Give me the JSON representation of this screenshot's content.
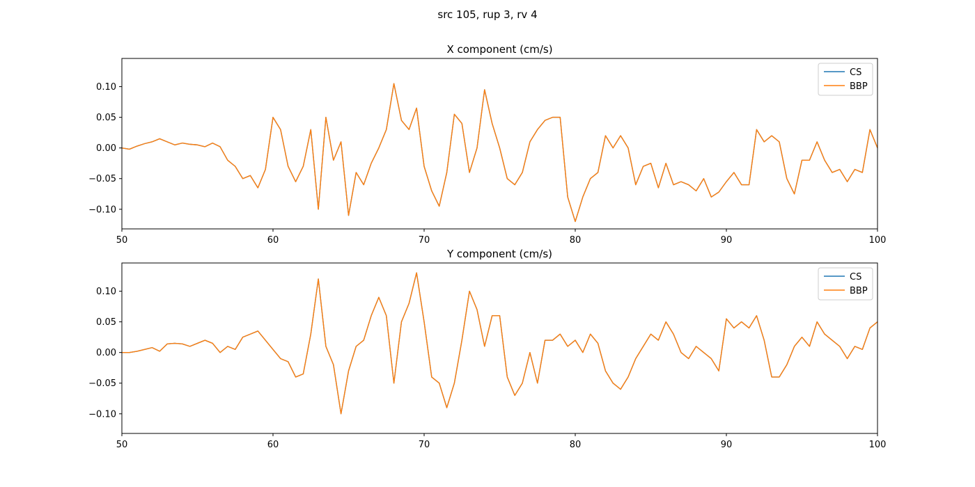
{
  "figure": {
    "suptitle": "src 105, rup 3, rv 4"
  },
  "colors": {
    "cs": "#1f77b4",
    "bbp": "#ff7f0e"
  },
  "chart_data": [
    {
      "type": "line",
      "title": "X component (cm/s)",
      "xlim": [
        50,
        100
      ],
      "ylim": [
        -0.132,
        0.146
      ],
      "xticks": [
        50,
        60,
        70,
        80,
        90,
        100
      ],
      "xtick_labels": [
        "50",
        "60",
        "70",
        "80",
        "90",
        "100"
      ],
      "yticks": [
        -0.1,
        -0.05,
        0.0,
        0.05,
        0.1
      ],
      "ytick_labels": [
        "−0.10",
        "−0.05",
        "0.00",
        "0.05",
        "0.10"
      ],
      "legend": {
        "placement": "upper-right",
        "entries": [
          "CS",
          "BBP"
        ]
      },
      "series": [
        {
          "name": "CS",
          "color": "#1f77b4"
        },
        {
          "name": "BBP",
          "color": "#ff7f0e"
        }
      ],
      "x": [
        50,
        50.5,
        51,
        51.5,
        52,
        52.5,
        53,
        53.5,
        54,
        54.5,
        55,
        55.5,
        56,
        56.5,
        57,
        57.5,
        58,
        58.5,
        59,
        59.5,
        60,
        60.5,
        61,
        61.5,
        62,
        62.5,
        63,
        63.5,
        64,
        64.5,
        65,
        65.5,
        66,
        66.5,
        67,
        67.5,
        68,
        68.5,
        69,
        69.5,
        70,
        70.5,
        71,
        71.5,
        72,
        72.5,
        73,
        73.5,
        74,
        74.5,
        75,
        75.5,
        76,
        76.5,
        77,
        77.5,
        78,
        78.5,
        79,
        79.5,
        80,
        80.5,
        81,
        81.5,
        82,
        82.5,
        83,
        83.5,
        84,
        84.5,
        85,
        85.5,
        86,
        86.5,
        87,
        87.5,
        88,
        88.5,
        89,
        89.5,
        90,
        90.5,
        91,
        91.5,
        92,
        92.5,
        93,
        93.5,
        94,
        94.5,
        95,
        95.5,
        96,
        96.5,
        97,
        97.5,
        98,
        98.5,
        99,
        99.5,
        100
      ],
      "y": [
        0.0,
        -0.002,
        0.003,
        0.007,
        0.01,
        0.015,
        0.01,
        0.005,
        0.008,
        0.006,
        0.005,
        0.002,
        0.008,
        0.002,
        -0.02,
        -0.03,
        -0.05,
        -0.045,
        -0.065,
        -0.035,
        0.05,
        0.03,
        -0.03,
        -0.055,
        -0.03,
        0.03,
        -0.1,
        0.05,
        -0.02,
        0.01,
        -0.11,
        -0.04,
        -0.06,
        -0.025,
        0.0,
        0.03,
        0.105,
        0.045,
        0.03,
        0.065,
        -0.03,
        -0.07,
        -0.095,
        -0.04,
        0.055,
        0.04,
        -0.04,
        0.0,
        0.095,
        0.04,
        0.0,
        -0.05,
        -0.06,
        -0.04,
        0.01,
        0.03,
        0.045,
        0.05,
        0.05,
        -0.08,
        -0.12,
        -0.08,
        -0.05,
        -0.04,
        0.02,
        0.0,
        0.02,
        0.0,
        -0.06,
        -0.03,
        -0.025,
        -0.065,
        -0.025,
        -0.06,
        -0.055,
        -0.06,
        -0.07,
        -0.05,
        -0.08,
        -0.072,
        -0.055,
        -0.04,
        -0.06,
        -0.06,
        0.03,
        0.01,
        0.02,
        0.01,
        -0.05,
        -0.075,
        -0.02,
        -0.02,
        0.01,
        -0.02,
        -0.04,
        -0.035,
        -0.055,
        -0.035,
        -0.04,
        0.03,
        0.0
      ],
      "annotation": "CS and BBP traces overlap"
    },
    {
      "type": "line",
      "title": "Y component (cm/s)",
      "xlim": [
        50,
        100
      ],
      "ylim": [
        -0.132,
        0.146
      ],
      "xticks": [
        50,
        60,
        70,
        80,
        90,
        100
      ],
      "xtick_labels": [
        "50",
        "60",
        "70",
        "80",
        "90",
        "100"
      ],
      "yticks": [
        -0.1,
        -0.05,
        0.0,
        0.05,
        0.1
      ],
      "ytick_labels": [
        "−0.10",
        "−0.05",
        "0.00",
        "0.05",
        "0.10"
      ],
      "legend": {
        "placement": "upper-right",
        "entries": [
          "CS",
          "BBP"
        ]
      },
      "series": [
        {
          "name": "CS",
          "color": "#1f77b4"
        },
        {
          "name": "BBP",
          "color": "#ff7f0e"
        }
      ],
      "x": [
        50,
        50.5,
        51,
        51.5,
        52,
        52.5,
        53,
        53.5,
        54,
        54.5,
        55,
        55.5,
        56,
        56.5,
        57,
        57.5,
        58,
        58.5,
        59,
        59.5,
        60,
        60.5,
        61,
        61.5,
        62,
        62.5,
        63,
        63.5,
        64,
        64.5,
        65,
        65.5,
        66,
        66.5,
        67,
        67.5,
        68,
        68.5,
        69,
        69.5,
        70,
        70.5,
        71,
        71.5,
        72,
        72.5,
        73,
        73.5,
        74,
        74.5,
        75,
        75.5,
        76,
        76.5,
        77,
        77.5,
        78,
        78.5,
        79,
        79.5,
        80,
        80.5,
        81,
        81.5,
        82,
        82.5,
        83,
        83.5,
        84,
        84.5,
        85,
        85.5,
        86,
        86.5,
        87,
        87.5,
        88,
        88.5,
        89,
        89.5,
        90,
        90.5,
        91,
        91.5,
        92,
        92.5,
        93,
        93.5,
        94,
        94.5,
        95,
        95.5,
        96,
        96.5,
        97,
        97.5,
        98,
        98.5,
        99,
        99.5,
        100
      ],
      "y": [
        0.0,
        0.0,
        0.002,
        0.005,
        0.008,
        0.002,
        0.014,
        0.015,
        0.014,
        0.01,
        0.015,
        0.02,
        0.015,
        0.0,
        0.01,
        0.005,
        0.025,
        0.03,
        0.035,
        0.02,
        0.005,
        -0.01,
        -0.015,
        -0.04,
        -0.035,
        0.03,
        0.12,
        0.01,
        -0.02,
        -0.1,
        -0.03,
        0.01,
        0.02,
        0.06,
        0.09,
        0.06,
        -0.05,
        0.05,
        0.08,
        0.13,
        0.05,
        -0.04,
        -0.05,
        -0.09,
        -0.05,
        0.02,
        0.1,
        0.07,
        0.01,
        0.06,
        0.06,
        -0.04,
        -0.07,
        -0.05,
        0.0,
        -0.05,
        0.02,
        0.02,
        0.03,
        0.01,
        0.02,
        0.0,
        0.03,
        0.015,
        -0.03,
        -0.05,
        -0.06,
        -0.04,
        -0.01,
        0.01,
        0.03,
        0.02,
        0.05,
        0.03,
        0.0,
        -0.01,
        0.01,
        0.0,
        -0.01,
        -0.03,
        0.055,
        0.04,
        0.05,
        0.04,
        0.06,
        0.02,
        -0.04,
        -0.04,
        -0.02,
        0.01,
        0.025,
        0.01,
        0.05,
        0.03,
        0.02,
        0.01,
        -0.01,
        0.01,
        0.005,
        0.04,
        0.05
      ],
      "annotation": "CS and BBP traces overlap"
    }
  ]
}
